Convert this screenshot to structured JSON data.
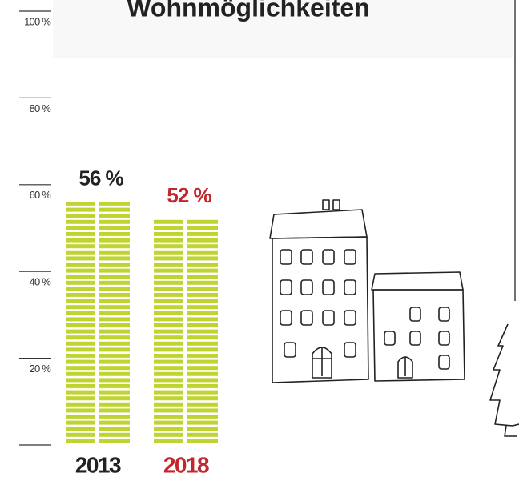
{
  "chart_data": {
    "type": "bar",
    "title": "Wohnmöglichkeiten",
    "categories": [
      "2013",
      "2018"
    ],
    "values": [
      56,
      52
    ],
    "value_labels": [
      "56 %",
      "52 %"
    ],
    "color": "#bfd430",
    "label_colors": [
      "#222222",
      "#c1272d"
    ],
    "ylim": [
      0,
      100
    ],
    "yticks": [
      {
        "value": 20,
        "label": "20 %"
      },
      {
        "value": 40,
        "label": "40 %"
      },
      {
        "value": 60,
        "label": "60 %"
      },
      {
        "value": 80,
        "label": "80 %"
      },
      {
        "value": 100,
        "label": "100 %"
      }
    ]
  }
}
